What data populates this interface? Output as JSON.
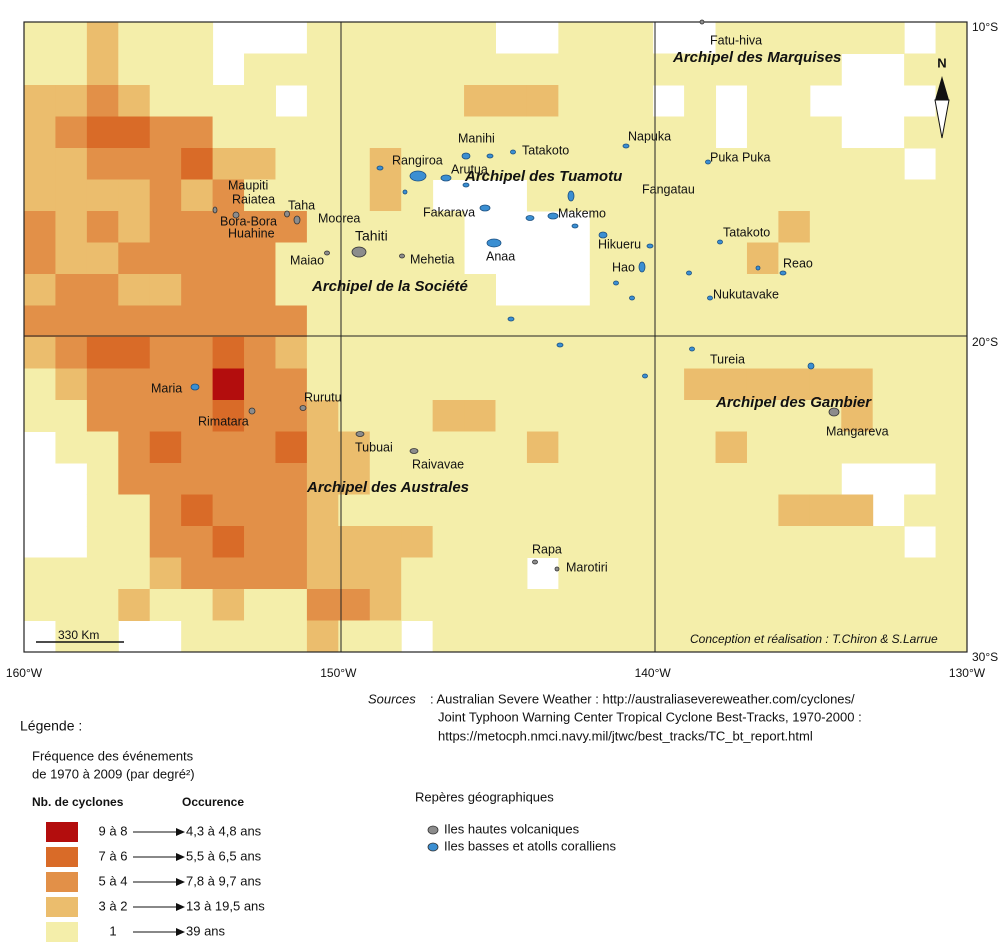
{
  "map": {
    "grid": [
      "112111000111111001110011111101",
      "112111011111111111111111110011",
      "223211110111112221110101100001",
      "234433111111111111111101110011",
      "223334221112111111111111111101",
      "222232311112100011111111111111",
      "323233333111110000111111211111",
      "322333331111110000111112111111",
      "233223331111111000111111111111",
      "333333333111111111111111111111",
      "234433432111111111111111111111",
      "123333533111111111111222222111",
      "113333433211122111111111112111",
      "011343334221111121111121111111",
      "001333333221111111111111110001",
      "001134333211111111111111222011",
      "001133433222211111111111111101",
      "111123333222111101111111111111",
      "111211211332111111111111111111",
      "011001111211011111111111111111"
    ],
    "lon_labels": [
      "160°W",
      "150°W",
      "140°W",
      "130°W"
    ],
    "lat_labels": [
      "10°S",
      "20°S",
      "30°S"
    ],
    "regions": [
      "Archipel des Marquises",
      "Archipel des Tuamotu",
      "Archipel de la Société",
      "Archipel des Gambier",
      "Archipel des Australes"
    ],
    "places": [
      "Fatu-hiva",
      "Manihi",
      "Tatakoto",
      "Napuka",
      "Rangiroa",
      "Arutua",
      "Puka Puka",
      "Maupiti",
      "Fangatau",
      "Raiatea",
      "Taha",
      "Fakarava",
      "Makemo",
      "Bora-Bora",
      "Moorea",
      "Huahine",
      "Tahiti",
      "Tatakoto",
      "Hikueru",
      "Maiao",
      "Mehetia",
      "Anaa",
      "Hao",
      "Reao",
      "Nukutavake",
      "Tureia",
      "Maria",
      "Rurutu",
      "Mangareva",
      "Rimatara",
      "Tubuai",
      "Raivavae",
      "Rapa",
      "Marotiri"
    ],
    "north": "N",
    "scale": "330 Km",
    "credit": "Conception et réalisation : T.Chiron & S.Larrue"
  },
  "sources": {
    "label": "Sources",
    "lines": [
      ": Australian Severe Weather : http://australiasevereweather.com/cyclones/",
      "Joint Typhoon Warning Center Tropical Cyclone Best-Tracks, 1970-2000 :",
      "https://metocph.nmci.navy.mil/jtwc/best_tracks/TC_bt_report.html"
    ]
  },
  "legend": {
    "title": "Légende :",
    "subtitle": [
      "Fréquence des événements",
      "de 1970 à 2009 (par degré²)"
    ],
    "col1": "Nb. de cyclones",
    "col2": "Occurence",
    "items": [
      {
        "count": "9 à 8",
        "occurrence": "4,3 à 4,8 ans",
        "color": "#b30d0d"
      },
      {
        "count": "7 à 6",
        "occurrence": "5,5 à 6,5 ans",
        "color": "#d96b28"
      },
      {
        "count": "5 à 4",
        "occurrence": "7,8 à 9,7 ans",
        "color": "#e29048"
      },
      {
        "count": "3 à 2",
        "occurrence": "13 à 19,5 ans",
        "color": "#ebbd6d"
      },
      {
        "count": "1",
        "occurrence": "39 ans",
        "color": "#f4eeaa"
      }
    ]
  },
  "reperes": {
    "title": "Repères géographiques",
    "items": [
      {
        "label": "Iles hautes volcaniques",
        "color": "#8c8c8c"
      },
      {
        "label": "Iles basses et atolls coralliens",
        "color": "#3b8fd2"
      }
    ]
  }
}
